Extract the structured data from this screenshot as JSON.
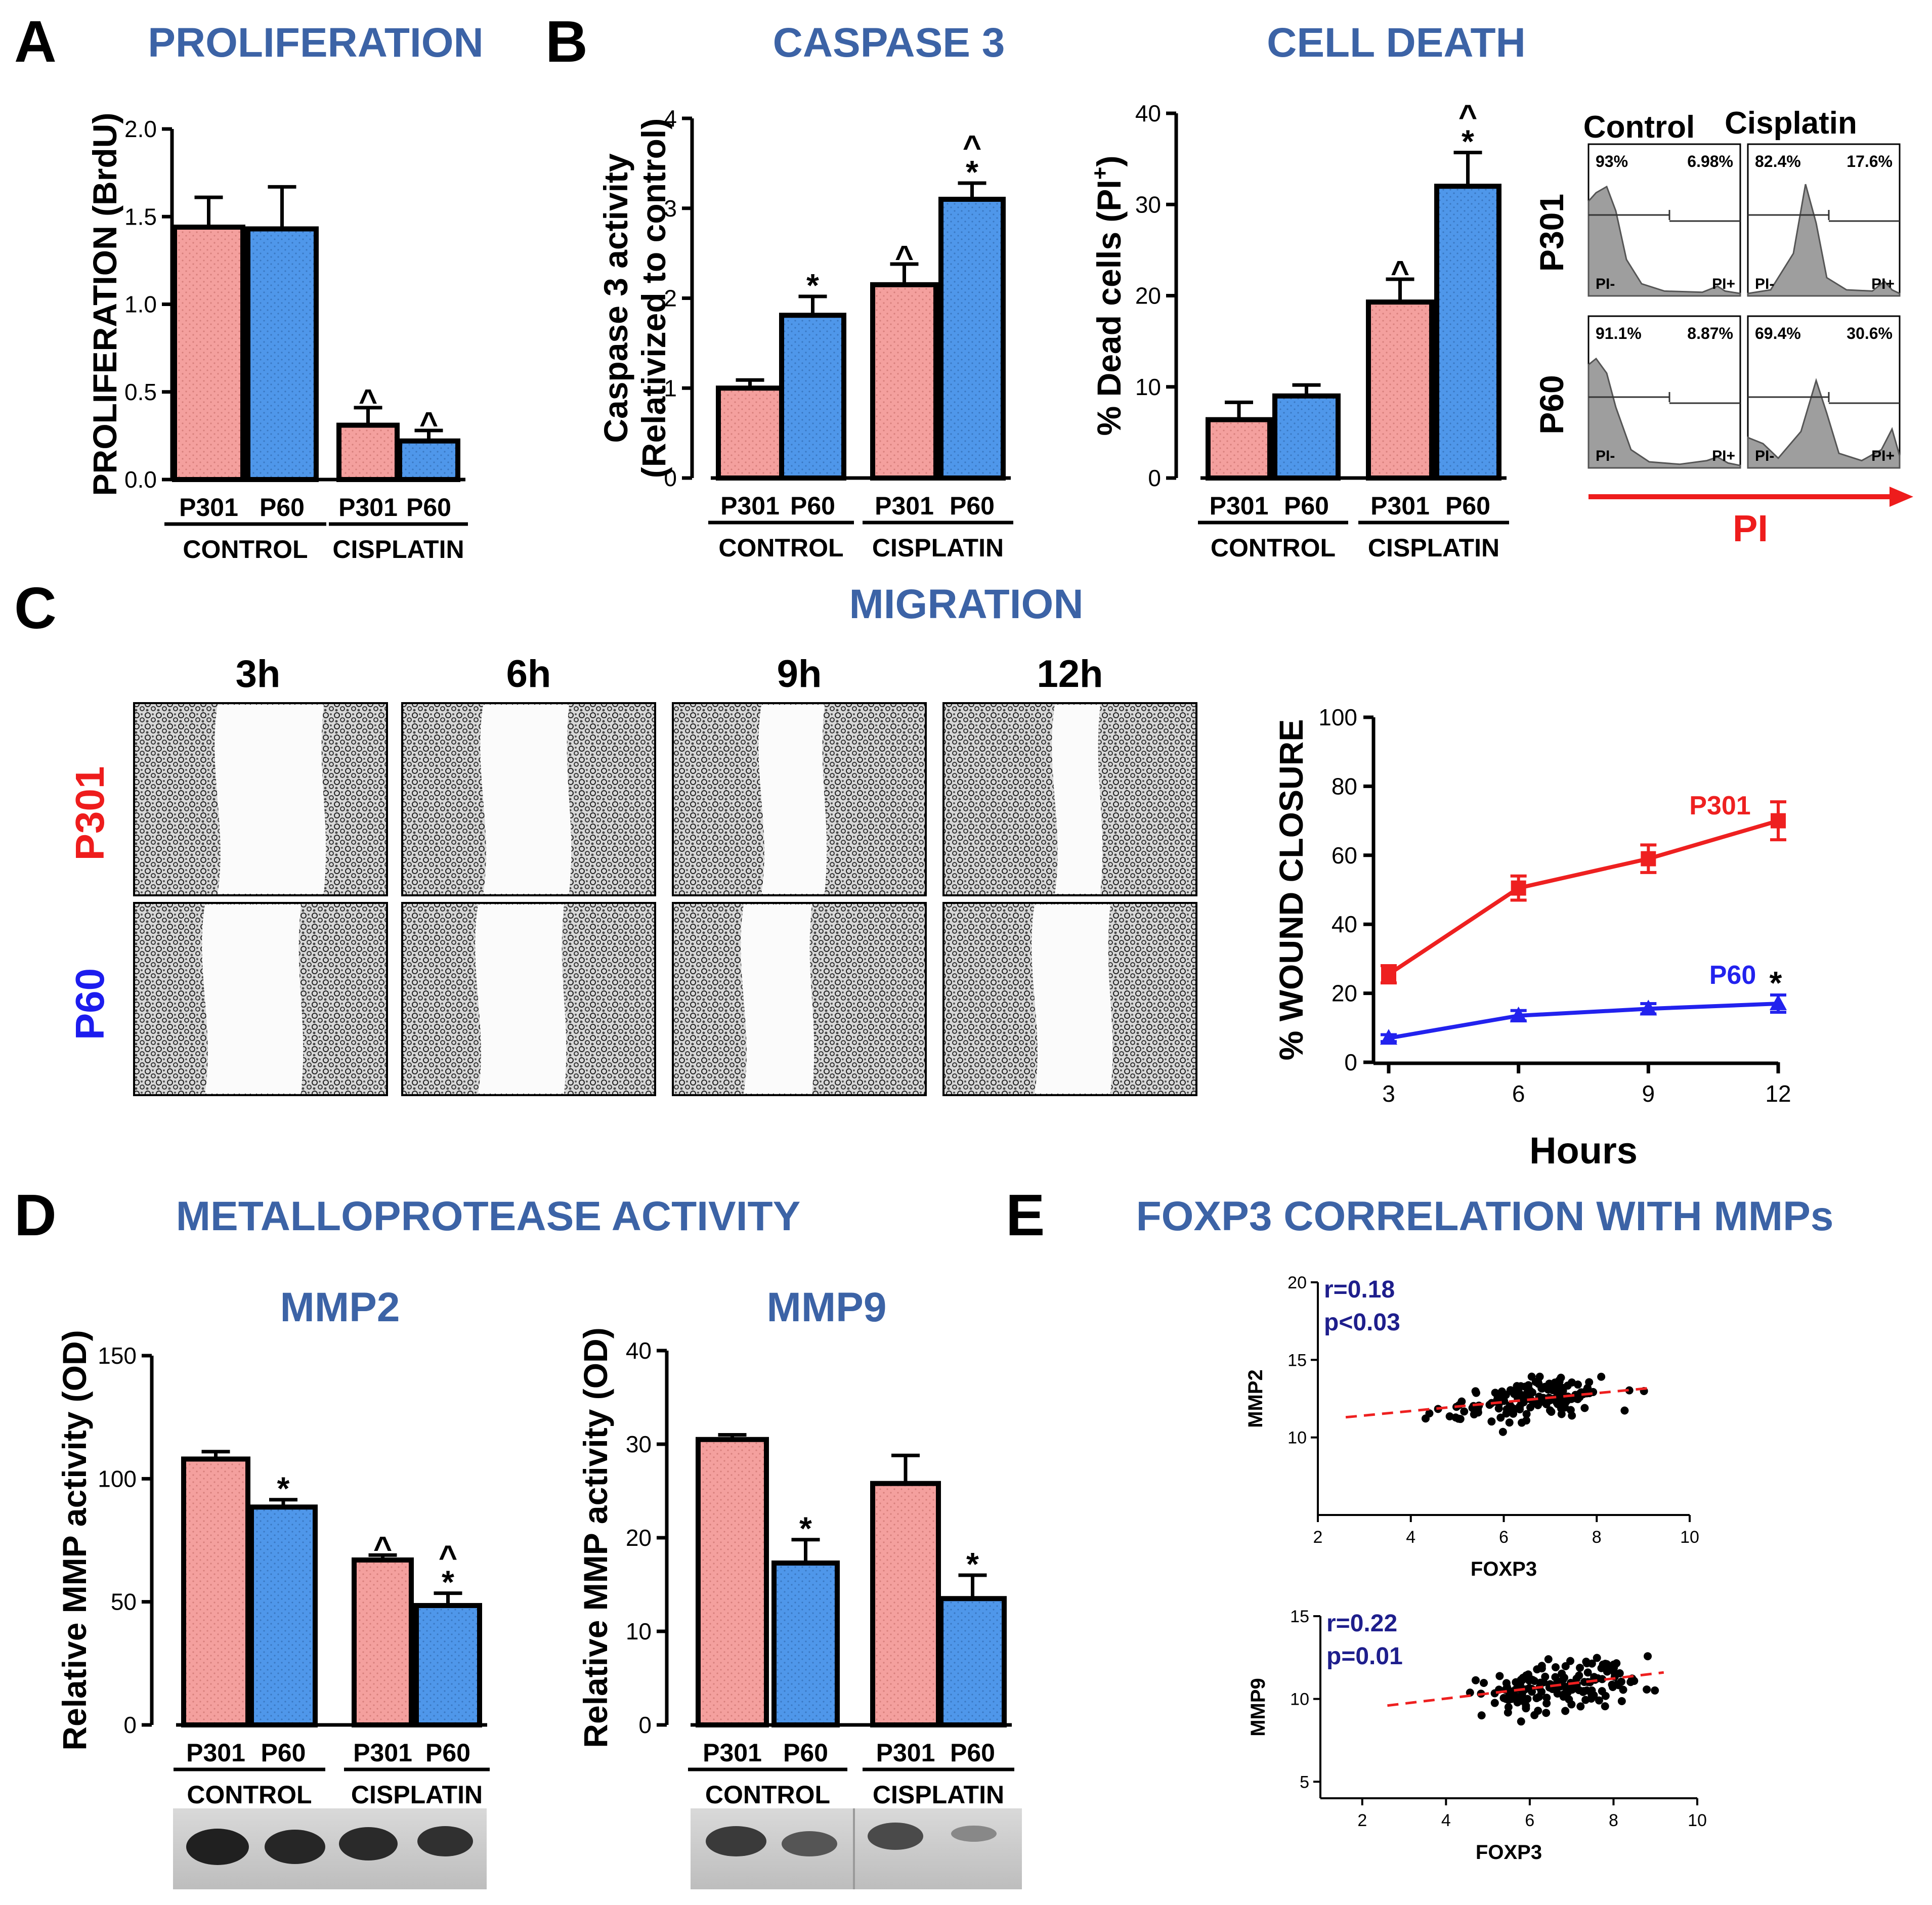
{
  "panel_letters": [
    "A",
    "B",
    "C",
    "D",
    "E"
  ],
  "titles": {
    "proliferation": "PROLIFERATION",
    "caspase": "CASPASE 3",
    "cell_death": "CELL DEATH",
    "migration": "MIGRATION",
    "metallo": "METALLOPROTEASE ACTIVITY",
    "mmp2": "MMP2",
    "mmp9": "MMP9",
    "foxp3": "FOXP3 CORRELATION WITH MMPs"
  },
  "colors": {
    "p301": "#F4A09E",
    "p60": "#4F97EA",
    "p301_line": "#EE2020",
    "p60_line": "#2222EE",
    "title_blue": "#3C63A6",
    "annot_blue": "#1E1E8C"
  },
  "flow": {
    "col_headers": [
      "Control",
      "Cisplatin"
    ],
    "row_labels": [
      "P301",
      "P60"
    ],
    "cells": [
      {
        "left": "93%",
        "right": "6.98%"
      },
      {
        "left": "82.4%",
        "right": "17.6%"
      },
      {
        "left": "91.1%",
        "right": "8.87%"
      },
      {
        "left": "69.4%",
        "right": "30.6%"
      }
    ],
    "gate_neg": "PI-",
    "gate_pos": "PI+",
    "axis_label": "PI"
  },
  "wound_images": {
    "times": [
      "3h",
      "6h",
      "9h",
      "12h"
    ],
    "rows": [
      "P301",
      "P60"
    ]
  },
  "chart_data": [
    {
      "id": "proliferation",
      "type": "bar",
      "title": "PROLIFERATION",
      "ylabel": "PROLIFERATION (BrdU)",
      "ylim": [
        0,
        2.0
      ],
      "yticks": [
        "0.0",
        "0.5",
        "1.0",
        "1.5",
        "2.0"
      ],
      "categories": [
        "P301",
        "P60",
        "P301",
        "P60"
      ],
      "groups": [
        "CONTROL",
        "CISPLATIN"
      ],
      "values": [
        1.44,
        1.43,
        0.31,
        0.22
      ],
      "errors": [
        0.17,
        0.24,
        0.1,
        0.06
      ],
      "marks": [
        "",
        "",
        "^",
        "^"
      ]
    },
    {
      "id": "caspase3",
      "type": "bar",
      "title": "CASPASE 3",
      "ylabel": "Caspase 3 activity",
      "ylabel2": "(Relativized to control)",
      "ylim": [
        0,
        4
      ],
      "yticks": [
        "0",
        "1",
        "2",
        "3",
        "4"
      ],
      "categories": [
        "P301",
        "P60",
        "P301",
        "P60"
      ],
      "groups": [
        "CONTROL",
        "CISPLATIN"
      ],
      "values": [
        1.0,
        1.81,
        2.15,
        3.1
      ],
      "errors": [
        0.09,
        0.21,
        0.23,
        0.18
      ],
      "marks": [
        "",
        "*",
        "^",
        "*^"
      ]
    },
    {
      "id": "cell_death",
      "type": "bar",
      "title": "CELL DEATH",
      "ylabel": "% Dead cells",
      "ylabel_unit": "(PI",
      "ylabel_sup": "+",
      "ylabel_close": ")",
      "ylim": [
        0,
        40
      ],
      "yticks": [
        "0",
        "10",
        "20",
        "30",
        "40"
      ],
      "categories": [
        "P301",
        "P60",
        "P301",
        "P60"
      ],
      "groups": [
        "CONTROL",
        "CISPLATIN"
      ],
      "values": [
        6.4,
        9.0,
        19.3,
        32.0
      ],
      "errors": [
        1.9,
        1.2,
        2.5,
        3.7
      ],
      "marks": [
        "",
        "",
        "^",
        "*^"
      ]
    },
    {
      "id": "wound_closure",
      "type": "line",
      "ylabel": "% WOUND CLOSURE",
      "xlabel": "Hours",
      "x": [
        3,
        6,
        9,
        12
      ],
      "xticks": [
        "3",
        "6",
        "9",
        "12"
      ],
      "ylim": [
        0,
        100
      ],
      "yticks": [
        "0",
        "20",
        "40",
        "60",
        "80",
        "100"
      ],
      "series": [
        {
          "name": "P301",
          "values": [
            25.5,
            50.5,
            59.0,
            70.0
          ],
          "errors": [
            2.5,
            3.5,
            4.0,
            5.5
          ],
          "marker": "square"
        },
        {
          "name": "P60",
          "values": [
            7.0,
            13.5,
            15.5,
            17.0
          ],
          "errors": [
            1.0,
            1.5,
            1.5,
            2.5
          ],
          "marker": "triangle"
        }
      ],
      "annotation": "*"
    },
    {
      "id": "mmp2",
      "type": "bar",
      "title": "MMP2",
      "ylabel": "Relative MMP activity (OD)",
      "ylim": [
        0,
        150
      ],
      "yticks": [
        "0",
        "50",
        "100",
        "150"
      ],
      "categories": [
        "P301",
        "P60",
        "P301",
        "P60"
      ],
      "groups": [
        "CONTROL",
        "CISPLATIN"
      ],
      "values": [
        108,
        88.5,
        67,
        48.5
      ],
      "errors": [
        3,
        3,
        2,
        5
      ],
      "marks": [
        "",
        "*",
        "^",
        "*^"
      ]
    },
    {
      "id": "mmp9",
      "type": "bar",
      "title": "MMP9",
      "ylabel": "Relative MMP activity (OD)",
      "ylim": [
        0,
        40
      ],
      "yticks": [
        "0",
        "10",
        "20",
        "30",
        "40"
      ],
      "categories": [
        "P301",
        "P60",
        "P301",
        "P60"
      ],
      "groups": [
        "CONTROL",
        "CISPLATIN"
      ],
      "values": [
        30.5,
        17.3,
        25.8,
        13.5
      ],
      "errors": [
        0.5,
        2.5,
        3.0,
        2.5
      ],
      "marks": [
        "",
        "*",
        "",
        "*"
      ]
    },
    {
      "id": "foxp3_mmp2",
      "type": "scatter",
      "xlabel": "FOXP3",
      "ylabel": "MMP2",
      "xlim": [
        2,
        10
      ],
      "ylim": [
        5,
        20
      ],
      "xticks": [
        "2",
        "4",
        "6",
        "8",
        "10"
      ],
      "yticks": [
        "10",
        "15",
        "20"
      ],
      "stats": [
        "r=0.18",
        "p<0.03"
      ],
      "fit": {
        "x": [
          2.6,
          9.2
        ],
        "y": [
          11.3,
          13.2
        ]
      },
      "points_seed": 11,
      "n": 150,
      "slope": 0.29,
      "intercept": 10.55,
      "spread": 1.25
    },
    {
      "id": "foxp3_mmp9",
      "type": "scatter",
      "xlabel": "FOXP3",
      "ylabel": "MMP9",
      "xlim": [
        1,
        10
      ],
      "ylim": [
        4,
        15
      ],
      "xticks": [
        "2",
        "4",
        "6",
        "8",
        "10"
      ],
      "yticks": [
        "5",
        "10",
        "15"
      ],
      "stats": [
        "r=0.22",
        "p=0.01"
      ],
      "fit": {
        "x": [
          2.6,
          9.2
        ],
        "y": [
          9.6,
          11.6
        ]
      },
      "points_seed": 29,
      "n": 150,
      "slope": 0.3,
      "intercept": 8.8,
      "spread": 1.5
    }
  ]
}
